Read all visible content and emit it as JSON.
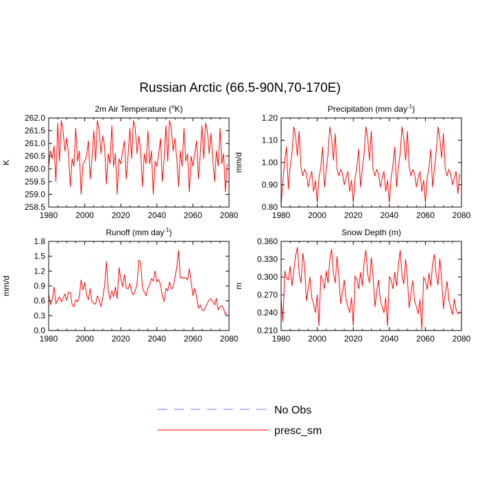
{
  "title": "Russian Arctic (66.5-90N,70-170E)",
  "legend": [
    {
      "label": "No Obs",
      "color": "#6f6fff",
      "style": "dashed"
    },
    {
      "label": "presc_sm",
      "color": "#ff0000",
      "style": "solid"
    }
  ],
  "chart_data": [
    {
      "type": "line",
      "title": "2m Air Temperature (°K)",
      "title_base": "2m Air Temperature (",
      "title_sup": "o",
      "title_unit": "K)",
      "ylabel": "K",
      "xlim": [
        1980,
        2080
      ],
      "ylim": [
        258.5,
        262.0
      ],
      "xticks": [
        1980,
        2000,
        2020,
        2040,
        2060,
        2080
      ],
      "yticks": [
        "258.5",
        "259.0",
        "259.5",
        "260.0",
        "260.5",
        "261.0",
        "261.5",
        "262.0"
      ],
      "series": [
        {
          "name": "presc_sm",
          "color": "#ff0000",
          "start": 1980,
          "values": [
            260.1,
            260.7,
            260.4,
            260.9,
            259.5,
            261.8,
            260.3,
            261.9,
            261.5,
            260.7,
            261.2,
            260.6,
            259.3,
            260.4,
            260.1,
            261.6,
            260.3,
            260.7,
            259.0,
            260.2,
            260.3,
            260.5,
            261.1,
            259.6,
            260.4,
            261.5,
            260.3,
            261.9,
            261.5,
            260.6,
            261.3,
            260.9,
            259.4,
            260.6,
            260.2,
            261.7,
            260.1,
            260.6,
            259.0,
            260.4,
            260.2,
            260.7,
            261.1,
            259.6,
            260.5,
            261.6,
            260.4,
            261.9,
            261.6,
            260.6,
            261.3,
            260.7,
            259.3,
            260.6,
            260.2,
            261.5,
            260.2,
            260.7,
            259.0,
            260.3,
            260.1,
            260.6,
            261.2,
            259.5,
            260.4,
            261.7,
            260.3,
            261.9,
            261.6,
            260.7,
            261.2,
            260.4,
            259.3,
            260.7,
            260.1,
            261.6,
            260.3,
            260.6,
            259.1,
            260.5,
            260.1,
            260.6,
            261.1,
            259.6,
            260.5,
            261.7,
            260.4,
            261.8,
            261.5,
            260.6,
            261.4,
            260.4,
            259.5,
            260.7,
            260.1,
            261.6,
            260.2,
            260.6,
            259.1,
            260.2
          ]
        }
      ]
    },
    {
      "type": "line",
      "title": "Precipitation (mm day-1)",
      "title_base": "Precipitation (mm day",
      "title_sup": "-1",
      "title_unit": ")",
      "ylabel": "mm/d",
      "xlim": [
        1980,
        2080
      ],
      "ylim": [
        0.8,
        1.2
      ],
      "xticks": [
        1980,
        2000,
        2020,
        2040,
        2060,
        2080
      ],
      "yticks": [
        "0.80",
        "0.90",
        "1.00",
        "1.10",
        "1.20"
      ],
      "series": [
        {
          "name": "presc_sm",
          "color": "#ff0000",
          "start": 1980,
          "values": [
            0.81,
            0.92,
            1.01,
            1.07,
            0.88,
            0.98,
            1.04,
            1.16,
            1.12,
            1.03,
            1.14,
            0.98,
            0.94,
            0.97,
            0.95,
            0.89,
            0.93,
            0.96,
            0.87,
            0.92,
            0.82,
            0.93,
            0.98,
            1.07,
            0.89,
            0.97,
            1.04,
            1.16,
            1.11,
            1.01,
            1.13,
            0.97,
            0.94,
            0.97,
            0.95,
            0.9,
            0.93,
            0.96,
            0.87,
            0.92,
            0.82,
            0.93,
            0.98,
            1.06,
            0.89,
            0.97,
            1.04,
            1.16,
            1.11,
            1.01,
            1.14,
            0.97,
            0.94,
            0.97,
            0.95,
            0.89,
            0.93,
            0.96,
            0.87,
            0.92,
            0.82,
            0.93,
            0.99,
            1.07,
            0.89,
            0.98,
            1.04,
            1.16,
            1.11,
            1.01,
            1.14,
            0.98,
            0.94,
            0.97,
            0.95,
            0.89,
            0.93,
            0.96,
            0.87,
            0.92,
            0.82,
            0.93,
            0.98,
            1.06,
            0.89,
            0.97,
            1.05,
            1.16,
            1.11,
            1.02,
            1.13,
            0.97,
            0.94,
            0.97,
            0.95,
            0.9,
            0.93,
            0.96,
            0.86,
            0.95
          ]
        }
      ]
    },
    {
      "type": "line",
      "title": "Runoff (mm day-1)",
      "title_base": "Runoff (mm day",
      "title_sup": "-1",
      "title_unit": ")",
      "ylabel": "mm/d",
      "xlim": [
        1980,
        2080
      ],
      "ylim": [
        0.0,
        1.8
      ],
      "xticks": [
        1980,
        2000,
        2020,
        2040,
        2060,
        2080
      ],
      "yticks": [
        "0.0",
        "0.3",
        "0.6",
        "0.9",
        "1.2",
        "1.5",
        "1.8"
      ],
      "series": [
        {
          "name": "presc_sm",
          "color": "#ff0000",
          "start": 1980,
          "values": [
            0.74,
            0.52,
            0.63,
            0.88,
            0.54,
            0.62,
            0.68,
            0.58,
            0.65,
            0.74,
            0.61,
            0.78,
            0.76,
            0.52,
            0.48,
            0.62,
            0.58,
            0.68,
            1.02,
            0.82,
            0.97,
            0.72,
            0.62,
            0.85,
            0.58,
            0.55,
            0.53,
            0.7,
            0.62,
            0.48,
            0.66,
            0.9,
            1.39,
            0.82,
            0.63,
            0.8,
            0.68,
            0.88,
            0.64,
            1.27,
            1.04,
            0.88,
            1.13,
            0.86,
            0.84,
            0.95,
            0.78,
            0.72,
            0.8,
            0.95,
            1.42,
            1.38,
            0.86,
            0.78,
            0.7,
            0.85,
            0.92,
            1.05,
            1.0,
            1.2,
            0.98,
            1.03,
            0.92,
            0.7,
            0.58,
            0.85,
            0.8,
            0.98,
            0.84,
            0.87,
            1.06,
            1.27,
            1.62,
            1.06,
            1.08,
            1.05,
            1.07,
            1.02,
            1.25,
            0.98,
            0.7,
            0.85,
            0.68,
            0.45,
            0.52,
            0.42,
            0.4,
            0.48,
            0.55,
            0.62,
            0.64,
            0.58,
            0.52,
            0.65,
            0.42,
            0.48,
            0.5,
            0.44,
            0.32,
            0.35
          ]
        }
      ]
    },
    {
      "type": "line",
      "title": "Snow Depth (m)",
      "title_base": "Snow Depth (m)",
      "title_sup": "",
      "title_unit": "",
      "ylabel": "m",
      "xlim": [
        1980,
        2080
      ],
      "ylim": [
        0.21,
        0.36
      ],
      "xticks": [
        1980,
        2000,
        2020,
        2040,
        2060,
        2080
      ],
      "yticks": [
        "0.210",
        "0.240",
        "0.270",
        "0.300",
        "0.330",
        "0.360"
      ],
      "series": [
        {
          "name": "presc_sm",
          "color": "#ff0000",
          "start": 1980,
          "values": [
            0.262,
            0.225,
            0.31,
            0.298,
            0.295,
            0.318,
            0.285,
            0.31,
            0.335,
            0.35,
            0.305,
            0.29,
            0.34,
            0.318,
            0.26,
            0.28,
            0.3,
            0.265,
            0.255,
            0.24,
            0.27,
            0.218,
            0.303,
            0.295,
            0.28,
            0.31,
            0.29,
            0.33,
            0.347,
            0.305,
            0.29,
            0.335,
            0.3,
            0.255,
            0.275,
            0.295,
            0.262,
            0.25,
            0.24,
            0.265,
            0.218,
            0.302,
            0.295,
            0.28,
            0.308,
            0.285,
            0.325,
            0.345,
            0.305,
            0.29,
            0.333,
            0.3,
            0.25,
            0.275,
            0.295,
            0.262,
            0.25,
            0.24,
            0.265,
            0.218,
            0.301,
            0.295,
            0.28,
            0.308,
            0.285,
            0.32,
            0.345,
            0.303,
            0.288,
            0.33,
            0.298,
            0.248,
            0.273,
            0.294,
            0.26,
            0.25,
            0.238,
            0.262,
            0.212,
            0.3,
            0.293,
            0.279,
            0.307,
            0.284,
            0.323,
            0.338,
            0.302,
            0.287,
            0.331,
            0.296,
            0.247,
            0.272,
            0.293,
            0.261,
            0.249,
            0.237,
            0.263,
            0.246,
            0.238,
            0.242
          ]
        }
      ]
    }
  ]
}
